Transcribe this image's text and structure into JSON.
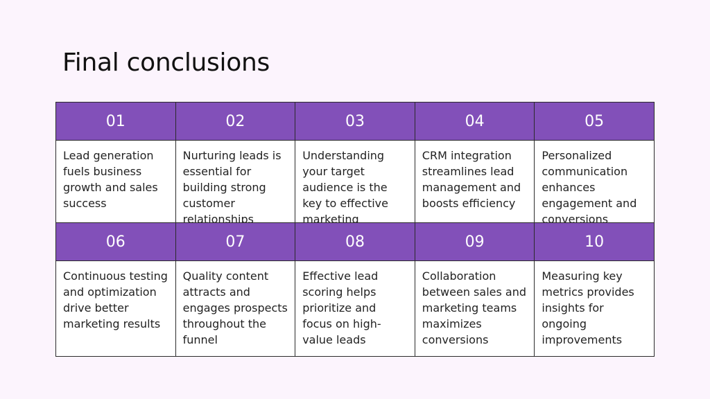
{
  "title": "Final conclusions",
  "rows": [
    {
      "items": [
        {
          "num": "01",
          "text": "Lead generation fuels business growth and sales success"
        },
        {
          "num": "02",
          "text": "Nurturing leads is essential for building strong customer relationships"
        },
        {
          "num": "03",
          "text": "Understanding your target audience is the key to effective marketing"
        },
        {
          "num": "04",
          "text": "CRM integration streamlines lead management and boosts efficiency"
        },
        {
          "num": "05",
          "text": "Personalized communication enhances engagement and conversions"
        }
      ]
    },
    {
      "items": [
        {
          "num": "06",
          "text": "Continuous testing and optimization drive better marketing results"
        },
        {
          "num": "07",
          "text": "Quality content attracts and engages prospects throughout the funnel"
        },
        {
          "num": "08",
          "text": "Effective lead scoring helps prioritize and focus on high-value leads"
        },
        {
          "num": "09",
          "text": "Collaboration between sales and marketing teams maximizes conversions"
        },
        {
          "num": "10",
          "text": "Measuring key metrics provides insights for ongoing improvements"
        }
      ]
    }
  ],
  "colors": {
    "header": "#8250b9",
    "background": "#fcf4fd"
  }
}
